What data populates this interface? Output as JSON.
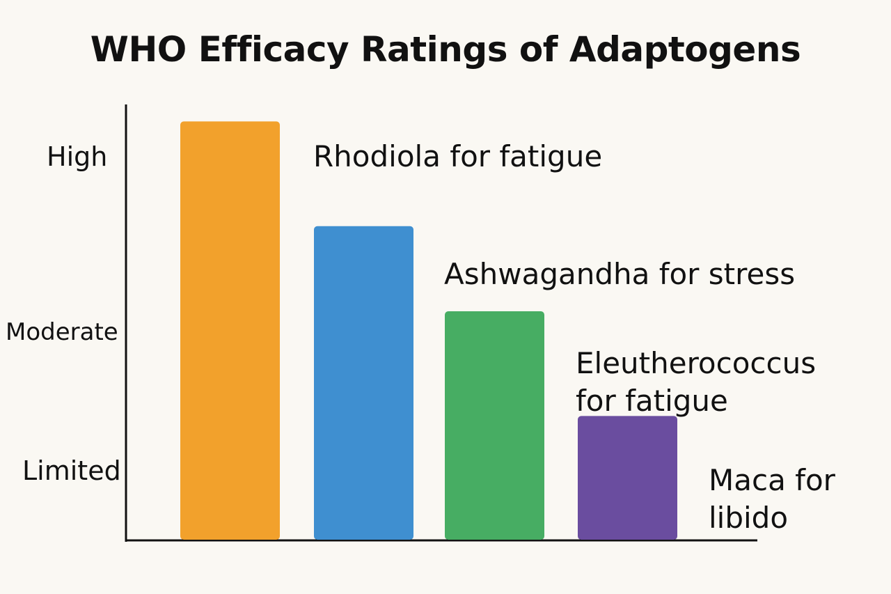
{
  "chart_data": {
    "type": "bar",
    "title": "WHO Efficacy Ratings of Adaptogens",
    "xlabel": "",
    "ylabel": "",
    "y_ticks": [
      "Limited",
      "Moderate",
      "High"
    ],
    "categories": [
      "Rhodiola for fatigue",
      "Ashwagandha for stress",
      "Eleutherococcus for fatigue",
      "Maca for libido"
    ],
    "values": [
      3.2,
      2.4,
      1.75,
      0.95
    ],
    "colors": [
      "#f2a12c",
      "#3f8fd0",
      "#47ad63",
      "#6a4d9f"
    ],
    "grid": false,
    "legend": "none"
  }
}
